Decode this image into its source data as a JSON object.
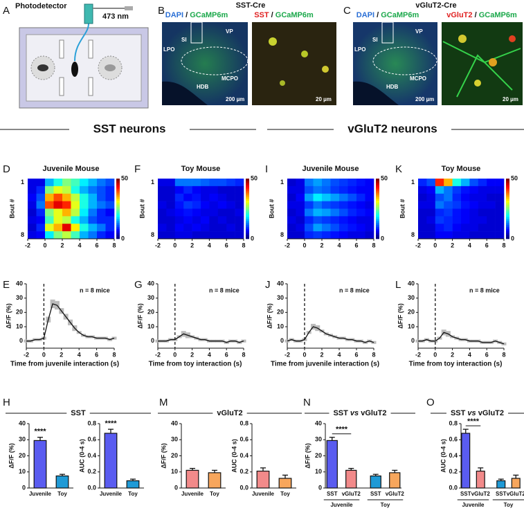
{
  "panel_a": {
    "letter": "A",
    "detector": "Photodetector",
    "wavelength": "473 nm"
  },
  "panel_b": {
    "letter": "B",
    "title": "SST-Cre",
    "left_header": [
      "DAPI",
      "/",
      "GCaMP6m"
    ],
    "right_header": [
      "SST",
      "/",
      "GCaMP6m"
    ],
    "regions": [
      "VP",
      "SI",
      "LPO",
      "HDB",
      "MCPO"
    ],
    "scale_bars": [
      "200 µm",
      "20 µm"
    ]
  },
  "panel_c": {
    "letter": "C",
    "title": "vGluT2-Cre",
    "left_header": [
      "DAPI",
      "/",
      "GCaMP6m"
    ],
    "right_header": [
      "vGluT2",
      "/",
      "GCaMP6m"
    ],
    "regions": [
      "VP",
      "SI",
      "LPO",
      "HDB",
      "MCPO"
    ],
    "scale_bars": [
      "200 µm",
      "20 µm"
    ]
  },
  "sections": [
    "SST neurons",
    "vGluT2 neurons"
  ],
  "chart_data": [
    {
      "type": "heatmap",
      "letter": "D",
      "title": "Juvenile Mouse",
      "ylabel": "Bout #",
      "xlim": [
        -2,
        8
      ],
      "xticks": [
        -2,
        0,
        2,
        4,
        6,
        8
      ],
      "yticks": [
        1,
        8
      ],
      "zlim": [
        0,
        50
      ],
      "zticks": [
        0,
        50
      ],
      "z": [
        [
          5,
          5,
          15,
          20,
          25,
          22,
          18,
          15,
          12,
          10
        ],
        [
          5,
          8,
          25,
          30,
          28,
          20,
          15,
          12,
          10,
          8
        ],
        [
          6,
          10,
          35,
          40,
          35,
          28,
          20,
          15,
          10,
          8
        ],
        [
          5,
          12,
          40,
          45,
          42,
          30,
          20,
          15,
          12,
          10
        ],
        [
          4,
          8,
          25,
          30,
          35,
          28,
          18,
          12,
          8,
          6
        ],
        [
          5,
          6,
          22,
          30,
          28,
          20,
          15,
          10,
          8,
          8
        ],
        [
          4,
          8,
          30,
          35,
          45,
          32,
          20,
          15,
          12,
          8
        ],
        [
          5,
          6,
          18,
          25,
          28,
          22,
          15,
          12,
          8,
          6
        ]
      ]
    },
    {
      "type": "line",
      "letter": "E",
      "ylabel": "ΔF/F (%)",
      "xlabel": "Time from juvenile interaction (s)",
      "annotation": "n = 8 mice",
      "marker_x": 0,
      "xlim": [
        -2,
        8
      ],
      "xticks": [
        -2,
        0,
        2,
        4,
        6,
        8
      ],
      "ylim": [
        -5,
        40
      ],
      "yticks": [
        0,
        10,
        20,
        30,
        40
      ],
      "x": [
        -2,
        -1.5,
        -1,
        -0.5,
        0,
        0.5,
        1,
        1.5,
        2,
        2.5,
        3,
        3.5,
        4,
        4.5,
        5,
        5.5,
        6,
        6.5,
        7,
        7.5,
        8
      ],
      "values": [
        0,
        0,
        1,
        1,
        2,
        15,
        26,
        25,
        21,
        17,
        13,
        9,
        6,
        4,
        3,
        3,
        2,
        2,
        2,
        1,
        2
      ],
      "errors": [
        1,
        1,
        1,
        1,
        1,
        2,
        3,
        3,
        2,
        2,
        2,
        2,
        1,
        1,
        1,
        1,
        1,
        1,
        1,
        1,
        1
      ]
    },
    {
      "type": "heatmap",
      "letter": "F",
      "title": "Toy Mouse",
      "ylabel": "Bout #",
      "xlim": [
        -2,
        8
      ],
      "xticks": [
        -2,
        0,
        2,
        4,
        6,
        8
      ],
      "yticks": [
        1,
        8
      ],
      "zlim": [
        0,
        50
      ],
      "zticks": [
        0,
        50
      ],
      "z": [
        [
          5,
          5,
          12,
          12,
          12,
          11,
          10,
          10,
          9,
          8
        ],
        [
          4,
          4,
          6,
          8,
          6,
          5,
          5,
          4,
          4,
          4
        ],
        [
          4,
          4,
          8,
          6,
          7,
          5,
          6,
          5,
          4,
          4
        ],
        [
          5,
          4,
          7,
          9,
          8,
          6,
          5,
          6,
          5,
          4
        ],
        [
          4,
          5,
          6,
          7,
          6,
          5,
          5,
          4,
          4,
          5
        ],
        [
          4,
          4,
          5,
          6,
          5,
          6,
          4,
          5,
          4,
          4
        ],
        [
          5,
          4,
          6,
          5,
          6,
          5,
          4,
          4,
          5,
          4
        ],
        [
          4,
          4,
          5,
          5,
          4,
          4,
          4,
          4,
          4,
          4
        ]
      ]
    },
    {
      "type": "line",
      "letter": "G",
      "ylabel": "ΔF/F (%)",
      "xlabel": "Time from toy interaction (s)",
      "annotation": "n = 8 mice",
      "marker_x": 0,
      "xlim": [
        -2,
        8
      ],
      "xticks": [
        -2,
        0,
        2,
        4,
        6,
        8
      ],
      "ylim": [
        -5,
        40
      ],
      "yticks": [
        0,
        10,
        20,
        30,
        40
      ],
      "x": [
        -2,
        -1.5,
        -1,
        -0.5,
        0,
        0.5,
        1,
        1.5,
        2,
        2.5,
        3,
        3.5,
        4,
        4.5,
        5,
        5.5,
        6,
        6.5,
        7,
        7.5,
        8
      ],
      "values": [
        0,
        0,
        0,
        1,
        1,
        3,
        5,
        4,
        3,
        2,
        1,
        1,
        0,
        0,
        0,
        0,
        -1,
        0,
        0,
        -1,
        0
      ],
      "errors": [
        1,
        1,
        1,
        1,
        1,
        1,
        2,
        2,
        1,
        1,
        1,
        1,
        1,
        1,
        1,
        1,
        1,
        1,
        1,
        1,
        1
      ]
    },
    {
      "type": "heatmap",
      "letter": "I",
      "title": "Juvenile Mouse",
      "ylabel": "Bout #",
      "xlim": [
        -2,
        8
      ],
      "xticks": [
        -2,
        0,
        2,
        4,
        6,
        8
      ],
      "yticks": [
        1,
        8
      ],
      "zlim": [
        0,
        50
      ],
      "zticks": [
        0,
        50
      ],
      "z": [
        [
          4,
          5,
          12,
          14,
          12,
          10,
          9,
          8,
          7,
          6
        ],
        [
          5,
          5,
          10,
          12,
          11,
          9,
          8,
          7,
          6,
          6
        ],
        [
          4,
          6,
          14,
          18,
          16,
          14,
          12,
          10,
          8,
          6
        ],
        [
          5,
          5,
          9,
          12,
          10,
          9,
          8,
          7,
          6,
          5
        ],
        [
          4,
          5,
          12,
          15,
          14,
          12,
          10,
          8,
          7,
          6
        ],
        [
          5,
          4,
          8,
          10,
          9,
          8,
          7,
          6,
          5,
          5
        ],
        [
          4,
          5,
          10,
          14,
          12,
          10,
          8,
          7,
          6,
          5
        ],
        [
          4,
          4,
          8,
          9,
          8,
          7,
          6,
          5,
          5,
          4
        ]
      ]
    },
    {
      "type": "line",
      "letter": "J",
      "ylabel": "ΔF/F (%)",
      "xlabel": "Time from juvenile interaction (s)",
      "annotation": "n = 8 mice",
      "marker_x": 0,
      "xlim": [
        -2,
        8
      ],
      "xticks": [
        -2,
        0,
        2,
        4,
        6,
        8
      ],
      "ylim": [
        -5,
        40
      ],
      "yticks": [
        0,
        10,
        20,
        30,
        40
      ],
      "x": [
        -2,
        -1.5,
        -1,
        -0.5,
        0,
        0.5,
        1,
        1.5,
        2,
        2.5,
        3,
        3.5,
        4,
        4.5,
        5,
        5.5,
        6,
        6.5,
        7,
        7.5,
        8
      ],
      "values": [
        0,
        1,
        0,
        0,
        1,
        6,
        10,
        9,
        7,
        5,
        4,
        3,
        2,
        2,
        1,
        1,
        0,
        0,
        -1,
        0,
        -1
      ],
      "errors": [
        1,
        1,
        1,
        1,
        1,
        1,
        2,
        2,
        1,
        1,
        1,
        1,
        1,
        1,
        1,
        1,
        1,
        1,
        1,
        1,
        1
      ]
    },
    {
      "type": "heatmap",
      "letter": "K",
      "title": "Toy Mouse",
      "ylabel": "Bout #",
      "xlim": [
        -2,
        8
      ],
      "xticks": [
        -2,
        0,
        2,
        4,
        6,
        8
      ],
      "yticks": [
        1,
        8
      ],
      "zlim": [
        0,
        50
      ],
      "zticks": [
        0,
        50
      ],
      "z": [
        [
          8,
          10,
          42,
          35,
          20,
          15,
          10,
          8,
          6,
          6
        ],
        [
          5,
          6,
          15,
          12,
          9,
          7,
          6,
          5,
          5,
          5
        ],
        [
          4,
          5,
          10,
          12,
          8,
          6,
          5,
          5,
          4,
          4
        ],
        [
          5,
          5,
          12,
          10,
          9,
          7,
          6,
          5,
          5,
          4
        ],
        [
          4,
          4,
          8,
          9,
          7,
          6,
          5,
          4,
          4,
          4
        ],
        [
          4,
          5,
          9,
          8,
          7,
          6,
          5,
          5,
          4,
          4
        ],
        [
          4,
          4,
          7,
          8,
          6,
          5,
          5,
          4,
          4,
          4
        ],
        [
          4,
          4,
          6,
          6,
          5,
          5,
          4,
          4,
          4,
          4
        ]
      ]
    },
    {
      "type": "line",
      "letter": "L",
      "ylabel": "ΔF/F (%)",
      "xlabel": "Time from toy interaction (s)",
      "annotation": "n = 8 mice",
      "marker_x": 0,
      "xlim": [
        -2,
        8
      ],
      "xticks": [
        -2,
        0,
        2,
        4,
        6,
        8
      ],
      "ylim": [
        -5,
        40
      ],
      "yticks": [
        0,
        10,
        20,
        30,
        40
      ],
      "x": [
        -2,
        -1.5,
        -1,
        -0.5,
        0,
        0.5,
        1,
        1.5,
        2,
        2.5,
        3,
        3.5,
        4,
        4.5,
        5,
        5.5,
        6,
        6.5,
        7,
        7.5,
        8
      ],
      "values": [
        0,
        0,
        1,
        0,
        0,
        2,
        6,
        5,
        3,
        2,
        1,
        1,
        0,
        0,
        0,
        -1,
        -1,
        -1,
        0,
        -1,
        -2
      ],
      "errors": [
        1,
        1,
        1,
        1,
        1,
        1,
        2,
        2,
        1,
        1,
        1,
        1,
        1,
        1,
        1,
        1,
        1,
        1,
        1,
        1,
        1
      ]
    },
    {
      "type": "bar",
      "letter": "H",
      "title": "SST",
      "ylabel": "ΔF/F (%)",
      "annotation": "****",
      "categories": [
        "Juvenile",
        "Toy"
      ],
      "values": [
        29.5,
        7.5
      ],
      "errors": [
        2,
        1
      ],
      "colors": [
        "#5a5cf0",
        "#1f9ad6"
      ],
      "ylim": [
        0,
        40
      ],
      "yticks": [
        0,
        10,
        20,
        30,
        40
      ]
    },
    {
      "type": "bar",
      "ylabel": "AUC (0-4 s)",
      "annotation": "****",
      "categories": [
        "Juvenile",
        "Toy"
      ],
      "values": [
        0.68,
        0.09
      ],
      "errors": [
        0.05,
        0.02
      ],
      "colors": [
        "#5a5cf0",
        "#1f9ad6"
      ],
      "ylim": [
        0,
        0.8
      ],
      "yticks": [
        {
          "value": 0,
          "label": "0.0"
        },
        0.2,
        0.4,
        0.6,
        0.8
      ]
    },
    {
      "type": "bar",
      "letter": "M",
      "title": "vGluT2",
      "ylabel": "ΔF/F (%)",
      "categories": [
        "Juvenile",
        "Toy"
      ],
      "values": [
        11,
        9.5
      ],
      "errors": [
        1.2,
        1.5
      ],
      "colors": [
        "#f28a8a",
        "#f7a65c"
      ],
      "ylim": [
        0,
        40
      ],
      "yticks": [
        0,
        10,
        20,
        30,
        40
      ]
    },
    {
      "type": "bar",
      "ylabel": "AUC (0-4 s)",
      "categories": [
        "Juvenile",
        "Toy"
      ],
      "values": [
        0.21,
        0.12
      ],
      "errors": [
        0.04,
        0.04
      ],
      "colors": [
        "#f28a8a",
        "#f7a65c"
      ],
      "ylim": [
        0,
        0.8
      ],
      "yticks": [
        {
          "value": 0,
          "label": "0.0"
        },
        0.2,
        0.4,
        0.6,
        0.8
      ]
    },
    {
      "type": "bar",
      "letter": "N",
      "title": [
        "SST",
        "vs",
        "vGluT2"
      ],
      "ylabel": "ΔF/F (%)",
      "annotation": "****",
      "categories": [
        "SST",
        "vGluT2",
        "SST",
        "vGluT2"
      ],
      "groups": [
        "Juvenile",
        "Toy"
      ],
      "values": [
        29.5,
        11,
        7.5,
        9.5
      ],
      "errors": [
        2,
        1.2,
        1,
        1.5
      ],
      "colors": [
        "#5a5cf0",
        "#f28a8a",
        "#1f9ad6",
        "#f7a65c"
      ],
      "ylim": [
        0,
        40
      ],
      "yticks": [
        0,
        10,
        20,
        30,
        40
      ]
    },
    {
      "type": "bar",
      "letter": "O",
      "title": [
        "SST",
        "vs",
        "vGluT2"
      ],
      "ylabel": "AUC (0-4 s)",
      "annotation": "****",
      "categories": [
        "SST",
        "vGluT2",
        "SST",
        "vGluT2"
      ],
      "groups": [
        "Juvenile",
        "Toy"
      ],
      "values": [
        0.68,
        0.21,
        0.09,
        0.12
      ],
      "errors": [
        0.05,
        0.04,
        0.02,
        0.04
      ],
      "colors": [
        "#5a5cf0",
        "#f28a8a",
        "#1f9ad6",
        "#f7a65c"
      ],
      "ylim": [
        0,
        0.8
      ],
      "yticks": [
        {
          "value": 0,
          "label": "0.0"
        },
        0.2,
        0.4,
        0.6,
        0.8
      ]
    }
  ]
}
